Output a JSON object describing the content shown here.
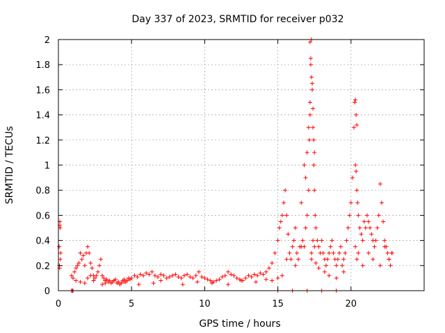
{
  "chart_data": {
    "type": "scatter",
    "title": "Day 337 of 2023, SRMTID for receiver p032",
    "xlabel": "GPS time / hours",
    "ylabel": "SRMTID / TECUs",
    "xlim": [
      0,
      25
    ],
    "ylim": [
      0,
      2
    ],
    "xticks": [
      0,
      5,
      10,
      15,
      20
    ],
    "xtick_labels": [
      "0",
      "5",
      "10",
      "15",
      "20"
    ],
    "yticks": [
      0,
      0.2,
      0.4,
      0.6,
      0.8,
      1.0,
      1.2,
      1.4,
      1.6,
      1.8,
      2.0
    ],
    "ytick_labels": [
      "0",
      "0.2",
      "0.4",
      "0.6",
      "0.8",
      "1",
      "1.2",
      "1.4",
      "1.6",
      "1.8",
      "2"
    ],
    "grid": true,
    "marker": "+",
    "color": "#ff0000",
    "series": [
      {
        "name": "SRMTID",
        "x": [
          0.05,
          0.07,
          0.1,
          0.12,
          0.15,
          0.08,
          0.1,
          0.13,
          0.9,
          1.0,
          1.1,
          1.2,
          1.3,
          1.4,
          1.5,
          1.6,
          1.7,
          1.8,
          1.9,
          2.0,
          2.1,
          2.2,
          2.3,
          2.4,
          2.5,
          2.6,
          2.7,
          2.8,
          2.9,
          3.0,
          3.1,
          3.2,
          3.3,
          3.4,
          3.5,
          3.6,
          3.7,
          3.8,
          3.9,
          4.0,
          4.1,
          4.2,
          4.3,
          4.4,
          4.5,
          4.6,
          4.7,
          4.8,
          4.9,
          5.0,
          5.2,
          5.4,
          5.6,
          5.8,
          6.0,
          6.2,
          6.4,
          6.6,
          6.8,
          7.0,
          7.2,
          7.4,
          7.6,
          7.8,
          8.0,
          8.2,
          8.4,
          8.6,
          8.8,
          9.0,
          9.2,
          9.4,
          9.6,
          9.8,
          10.0,
          10.2,
          10.4,
          10.6,
          10.8,
          11.0,
          11.2,
          11.4,
          11.6,
          11.8,
          12.0,
          12.2,
          12.4,
          12.6,
          12.8,
          13.0,
          13.2,
          13.4,
          13.6,
          13.8,
          14.0,
          14.2,
          14.4,
          14.6,
          14.8,
          15.0,
          15.1,
          15.2,
          15.3,
          15.4,
          15.5,
          15.6,
          15.7,
          15.8,
          15.9,
          16.0,
          16.1,
          16.2,
          16.3,
          16.4,
          16.5,
          16.6,
          16.7,
          16.8,
          16.9,
          17.0,
          17.1,
          17.15,
          17.2,
          17.25,
          17.3,
          17.35,
          17.4,
          17.45,
          17.5,
          17.55,
          17.6,
          17.7,
          17.8,
          17.9,
          18.0,
          18.1,
          18.2,
          18.3,
          18.4,
          18.5,
          18.6,
          18.7,
          18.8,
          18.9,
          19.0,
          19.1,
          19.2,
          19.3,
          19.4,
          19.5,
          19.6,
          19.7,
          19.8,
          19.9,
          20.0,
          20.1,
          20.2,
          20.25,
          20.3,
          20.35,
          20.4,
          20.45,
          20.5,
          20.6,
          20.7,
          20.8,
          20.9,
          21.0,
          21.1,
          21.2,
          21.3,
          21.4,
          21.5,
          21.6,
          21.7,
          21.8,
          21.9,
          22.0,
          22.1,
          22.2,
          22.3,
          22.4,
          22.5,
          22.6,
          22.7,
          22.8,
          1.2,
          1.5,
          1.8,
          2.0,
          2.2,
          2.4,
          3.0,
          3.2,
          4.5,
          5.5,
          6.5,
          7.0,
          8.5,
          9.5,
          10.5,
          11.6,
          12.5,
          13.5,
          14.2,
          14.6,
          15.0,
          15.3,
          15.6,
          16.2,
          16.6,
          17.3,
          17.3,
          17.4,
          17.5,
          17.6,
          17.8,
          18.2,
          18.5,
          19.0,
          19.5,
          20.3,
          20.4,
          20.5,
          20.8,
          21.2,
          21.5,
          22.0,
          22.3,
          22.6,
          22.8,
          0.9,
          1.0,
          15.0,
          16.0,
          17.0,
          18.0,
          19.0,
          0.95,
          17.2,
          17.3,
          17.35,
          17.4,
          20.3,
          20.35,
          20.4,
          17.25,
          17.45,
          17.5,
          16.8,
          16.9,
          17.0,
          17.1,
          17.2
        ],
        "y": [
          0.35,
          0.2,
          0.52,
          0.5,
          0.3,
          0.18,
          0.55,
          0.25,
          0.12,
          0.1,
          0.15,
          0.18,
          0.2,
          0.22,
          0.3,
          0.25,
          0.28,
          0.2,
          0.3,
          0.35,
          0.3,
          0.22,
          0.18,
          0.12,
          0.1,
          0.12,
          0.15,
          0.2,
          0.25,
          0.12,
          0.1,
          0.08,
          0.09,
          0.07,
          0.08,
          0.06,
          0.07,
          0.08,
          0.09,
          0.06,
          0.07,
          0.05,
          0.06,
          0.08,
          0.09,
          0.07,
          0.08,
          0.1,
          0.09,
          0.1,
          0.12,
          0.11,
          0.13,
          0.12,
          0.14,
          0.13,
          0.15,
          0.12,
          0.11,
          0.13,
          0.12,
          0.1,
          0.11,
          0.12,
          0.13,
          0.11,
          0.1,
          0.12,
          0.13,
          0.11,
          0.1,
          0.12,
          0.15,
          0.11,
          0.1,
          0.09,
          0.08,
          0.07,
          0.08,
          0.09,
          0.11,
          0.12,
          0.15,
          0.13,
          0.12,
          0.1,
          0.09,
          0.08,
          0.1,
          0.12,
          0.11,
          0.13,
          0.12,
          0.14,
          0.13,
          0.15,
          0.18,
          0.22,
          0.3,
          0.4,
          0.5,
          0.55,
          0.6,
          0.7,
          0.8,
          0.6,
          0.45,
          0.3,
          0.25,
          0.35,
          0.4,
          0.5,
          0.3,
          0.25,
          0.35,
          0.7,
          0.4,
          0.35,
          0.5,
          0.6,
          0.8,
          1.2,
          1.5,
          1.85,
          2.0,
          1.65,
          1.3,
          1.0,
          0.8,
          0.6,
          0.5,
          0.4,
          0.35,
          0.3,
          0.4,
          0.3,
          0.25,
          0.2,
          0.25,
          0.3,
          0.35,
          0.4,
          0.3,
          0.25,
          0.2,
          0.25,
          0.3,
          0.35,
          0.2,
          0.25,
          0.3,
          0.4,
          0.5,
          0.6,
          0.7,
          0.9,
          1.3,
          1.5,
          1.0,
          0.95,
          0.8,
          0.7,
          0.6,
          0.5,
          0.45,
          0.4,
          0.55,
          0.5,
          0.6,
          0.55,
          0.5,
          0.45,
          0.4,
          0.35,
          0.4,
          0.5,
          0.6,
          0.85,
          0.7,
          0.55,
          0.4,
          0.35,
          0.3,
          0.25,
          0.2,
          0.3,
          0.08,
          0.07,
          0.06,
          0.1,
          0.12,
          0.08,
          0.05,
          0.06,
          0.07,
          0.05,
          0.06,
          0.08,
          0.05,
          0.07,
          0.06,
          0.05,
          0.08,
          0.07,
          0.09,
          0.08,
          0.1,
          0.12,
          0.25,
          0.2,
          0.35,
          0.3,
          0.25,
          0.4,
          0.35,
          0.22,
          0.18,
          0.15,
          0.12,
          0.1,
          0.15,
          0.35,
          0.25,
          0.3,
          0.2,
          0.3,
          0.25,
          0.2,
          0.35,
          0.25,
          0.3,
          0.0,
          0.0,
          0.0,
          0.0,
          0.0,
          0.0,
          0.0,
          0.0,
          1.98,
          1.7,
          1.6,
          1.45,
          1.52,
          1.4,
          1.32,
          1.8,
          1.2,
          1.1,
          1.0,
          0.9,
          1.1,
          1.3,
          1.4
        ]
      }
    ]
  }
}
